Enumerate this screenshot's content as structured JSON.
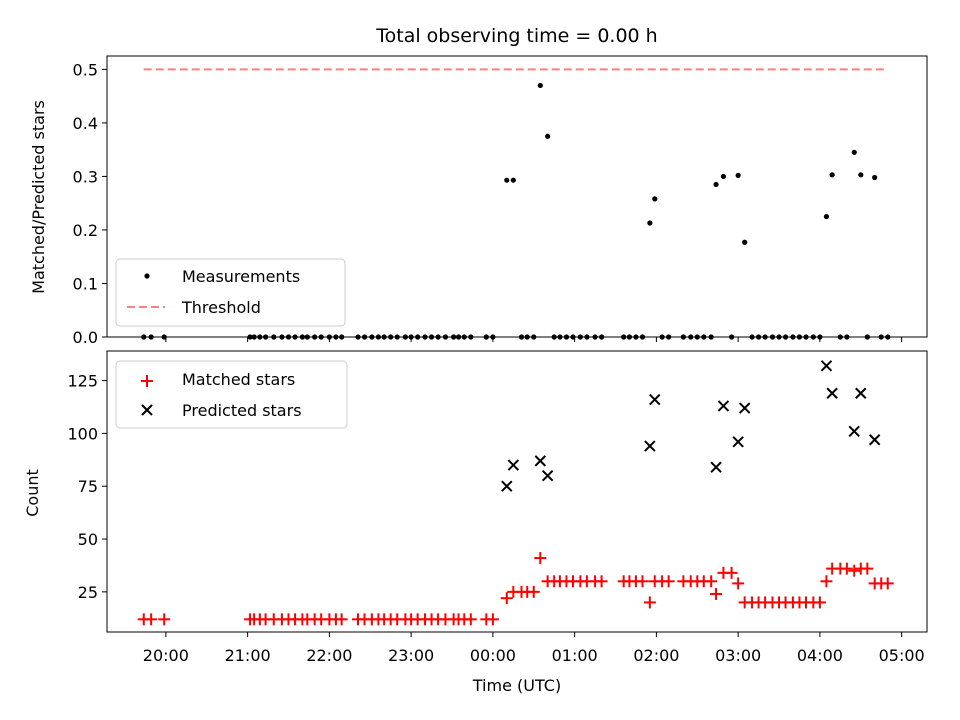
{
  "chart_data": [
    {
      "type": "scatter",
      "title": "Total observing time = 0.00 h",
      "xlabel": "",
      "ylabel": "Matched/Predicted stars",
      "ylim": [
        0,
        0.525
      ],
      "yticks": [
        "0.0",
        "0.1",
        "0.2",
        "0.3",
        "0.4",
        "0.5"
      ],
      "ytick_values": [
        0,
        0.1,
        0.2,
        0.3,
        0.4,
        0.5
      ],
      "x_axis": "time (hours, UTC; values >= 24 are after midnight)",
      "xlim": [
        19.28,
        29.31
      ],
      "legend": {
        "placement": "lower-left",
        "entries": [
          "Measurements",
          "Threshold"
        ]
      },
      "threshold": {
        "name": "Threshold",
        "value": 0.5,
        "x_range": [
          19.73,
          28.83
        ],
        "color": "#ff7f7f",
        "style": "dashed"
      },
      "series": [
        {
          "name": "Measurements",
          "color": "#000000",
          "points": [
            [
              19.73,
              0
            ],
            [
              19.82,
              0
            ],
            [
              19.98,
              0
            ],
            [
              21.03,
              0
            ],
            [
              21.08,
              0
            ],
            [
              21.15,
              0
            ],
            [
              21.22,
              0
            ],
            [
              21.32,
              0
            ],
            [
              21.42,
              0
            ],
            [
              21.5,
              0
            ],
            [
              21.58,
              0
            ],
            [
              21.67,
              0
            ],
            [
              21.73,
              0
            ],
            [
              21.82,
              0
            ],
            [
              21.9,
              0
            ],
            [
              22.0,
              0
            ],
            [
              22.08,
              0
            ],
            [
              22.15,
              0
            ],
            [
              22.35,
              0
            ],
            [
              22.43,
              0
            ],
            [
              22.52,
              0
            ],
            [
              22.6,
              0
            ],
            [
              22.67,
              0
            ],
            [
              22.75,
              0
            ],
            [
              22.83,
              0
            ],
            [
              22.93,
              0
            ],
            [
              23.0,
              0
            ],
            [
              23.08,
              0
            ],
            [
              23.17,
              0
            ],
            [
              23.25,
              0
            ],
            [
              23.33,
              0
            ],
            [
              23.42,
              0
            ],
            [
              23.52,
              0
            ],
            [
              23.58,
              0
            ],
            [
              23.65,
              0
            ],
            [
              23.73,
              0
            ],
            [
              23.92,
              0
            ],
            [
              24.0,
              0
            ],
            [
              24.17,
              0.293
            ],
            [
              24.25,
              0.293
            ],
            [
              24.35,
              0
            ],
            [
              24.42,
              0
            ],
            [
              24.5,
              0
            ],
            [
              24.58,
              0.47
            ],
            [
              24.67,
              0.375
            ],
            [
              24.75,
              0
            ],
            [
              24.82,
              0
            ],
            [
              24.9,
              0
            ],
            [
              24.98,
              0
            ],
            [
              25.07,
              0
            ],
            [
              25.15,
              0
            ],
            [
              25.25,
              0
            ],
            [
              25.33,
              0
            ],
            [
              25.6,
              0
            ],
            [
              25.67,
              0
            ],
            [
              25.75,
              0
            ],
            [
              25.83,
              0
            ],
            [
              25.92,
              0.213
            ],
            [
              25.98,
              0.258
            ],
            [
              26.07,
              0
            ],
            [
              26.15,
              0
            ],
            [
              26.33,
              0
            ],
            [
              26.42,
              0
            ],
            [
              26.5,
              0
            ],
            [
              26.58,
              0
            ],
            [
              26.67,
              0
            ],
            [
              26.73,
              0.285
            ],
            [
              26.82,
              0.3
            ],
            [
              26.92,
              0
            ],
            [
              27.0,
              0.302
            ],
            [
              27.08,
              0.177
            ],
            [
              27.17,
              0
            ],
            [
              27.25,
              0
            ],
            [
              27.33,
              0
            ],
            [
              27.42,
              0
            ],
            [
              27.5,
              0
            ],
            [
              27.58,
              0
            ],
            [
              27.67,
              0
            ],
            [
              27.75,
              0
            ],
            [
              27.83,
              0
            ],
            [
              27.92,
              0
            ],
            [
              28.0,
              0
            ],
            [
              28.08,
              0.225
            ],
            [
              28.15,
              0.303
            ],
            [
              28.25,
              0
            ],
            [
              28.33,
              0
            ],
            [
              28.42,
              0.345
            ],
            [
              28.5,
              0.303
            ],
            [
              28.58,
              0
            ],
            [
              28.67,
              0.298
            ],
            [
              28.75,
              0
            ],
            [
              28.83,
              0
            ]
          ]
        }
      ]
    },
    {
      "type": "scatter",
      "title": "",
      "xlabel": "Time (UTC)",
      "ylabel": "Count",
      "ylim": [
        6,
        139
      ],
      "yticks": [
        "25",
        "50",
        "75",
        "100",
        "125"
      ],
      "ytick_values": [
        25,
        50,
        75,
        100,
        125
      ],
      "xticks": [
        "20:00",
        "21:00",
        "22:00",
        "23:00",
        "00:00",
        "01:00",
        "02:00",
        "03:00",
        "04:00",
        "05:00"
      ],
      "xtick_values": [
        20,
        21,
        22,
        23,
        24,
        25,
        26,
        27,
        28,
        29
      ],
      "xlim": [
        19.28,
        29.31
      ],
      "legend": {
        "placement": "upper-left",
        "entries": [
          "Matched stars",
          "Predicted stars"
        ]
      },
      "series": [
        {
          "name": "Matched stars",
          "marker": "+",
          "color": "#ff0000",
          "points": [
            [
              19.73,
              12
            ],
            [
              19.82,
              12
            ],
            [
              19.98,
              12
            ],
            [
              21.03,
              12
            ],
            [
              21.08,
              12
            ],
            [
              21.15,
              12
            ],
            [
              21.22,
              12
            ],
            [
              21.32,
              12
            ],
            [
              21.42,
              12
            ],
            [
              21.5,
              12
            ],
            [
              21.58,
              12
            ],
            [
              21.67,
              12
            ],
            [
              21.73,
              12
            ],
            [
              21.82,
              12
            ],
            [
              21.9,
              12
            ],
            [
              22.0,
              12
            ],
            [
              22.08,
              12
            ],
            [
              22.15,
              12
            ],
            [
              22.35,
              12
            ],
            [
              22.43,
              12
            ],
            [
              22.52,
              12
            ],
            [
              22.6,
              12
            ],
            [
              22.67,
              12
            ],
            [
              22.75,
              12
            ],
            [
              22.83,
              12
            ],
            [
              22.93,
              12
            ],
            [
              23.0,
              12
            ],
            [
              23.08,
              12
            ],
            [
              23.17,
              12
            ],
            [
              23.25,
              12
            ],
            [
              23.33,
              12
            ],
            [
              23.42,
              12
            ],
            [
              23.52,
              12
            ],
            [
              23.58,
              12
            ],
            [
              23.65,
              12
            ],
            [
              23.73,
              12
            ],
            [
              23.92,
              12
            ],
            [
              24.0,
              12
            ],
            [
              24.17,
              22
            ],
            [
              24.25,
              25
            ],
            [
              24.35,
              25
            ],
            [
              24.42,
              25
            ],
            [
              24.5,
              25
            ],
            [
              24.58,
              41
            ],
            [
              24.67,
              30
            ],
            [
              24.75,
              30
            ],
            [
              24.82,
              30
            ],
            [
              24.9,
              30
            ],
            [
              24.98,
              30
            ],
            [
              25.07,
              30
            ],
            [
              25.15,
              30
            ],
            [
              25.25,
              30
            ],
            [
              25.33,
              30
            ],
            [
              25.6,
              30
            ],
            [
              25.67,
              30
            ],
            [
              25.75,
              30
            ],
            [
              25.83,
              30
            ],
            [
              25.92,
              20
            ],
            [
              25.98,
              30
            ],
            [
              26.07,
              30
            ],
            [
              26.15,
              30
            ],
            [
              26.33,
              30
            ],
            [
              26.42,
              30
            ],
            [
              26.5,
              30
            ],
            [
              26.58,
              30
            ],
            [
              26.67,
              30
            ],
            [
              26.73,
              24
            ],
            [
              26.82,
              34
            ],
            [
              26.92,
              34
            ],
            [
              27.0,
              29
            ],
            [
              27.08,
              20
            ],
            [
              27.17,
              20
            ],
            [
              27.25,
              20
            ],
            [
              27.33,
              20
            ],
            [
              27.42,
              20
            ],
            [
              27.5,
              20
            ],
            [
              27.58,
              20
            ],
            [
              27.67,
              20
            ],
            [
              27.75,
              20
            ],
            [
              27.83,
              20
            ],
            [
              27.92,
              20
            ],
            [
              28.0,
              20
            ],
            [
              28.08,
              30
            ],
            [
              28.15,
              36
            ],
            [
              28.25,
              36
            ],
            [
              28.33,
              36
            ],
            [
              28.42,
              35
            ],
            [
              28.5,
              36
            ],
            [
              28.58,
              36
            ],
            [
              28.67,
              29
            ],
            [
              28.75,
              29
            ],
            [
              28.83,
              29
            ]
          ]
        },
        {
          "name": "Predicted stars",
          "marker": "x",
          "color": "#000000",
          "points": [
            [
              24.17,
              75
            ],
            [
              24.25,
              85
            ],
            [
              24.58,
              87
            ],
            [
              24.67,
              80
            ],
            [
              25.92,
              94
            ],
            [
              25.98,
              116
            ],
            [
              26.73,
              84
            ],
            [
              26.82,
              113
            ],
            [
              27.0,
              96
            ],
            [
              27.08,
              112
            ],
            [
              28.08,
              132
            ],
            [
              28.15,
              119
            ],
            [
              28.42,
              101
            ],
            [
              28.5,
              119
            ],
            [
              28.67,
              97
            ]
          ]
        }
      ]
    }
  ]
}
